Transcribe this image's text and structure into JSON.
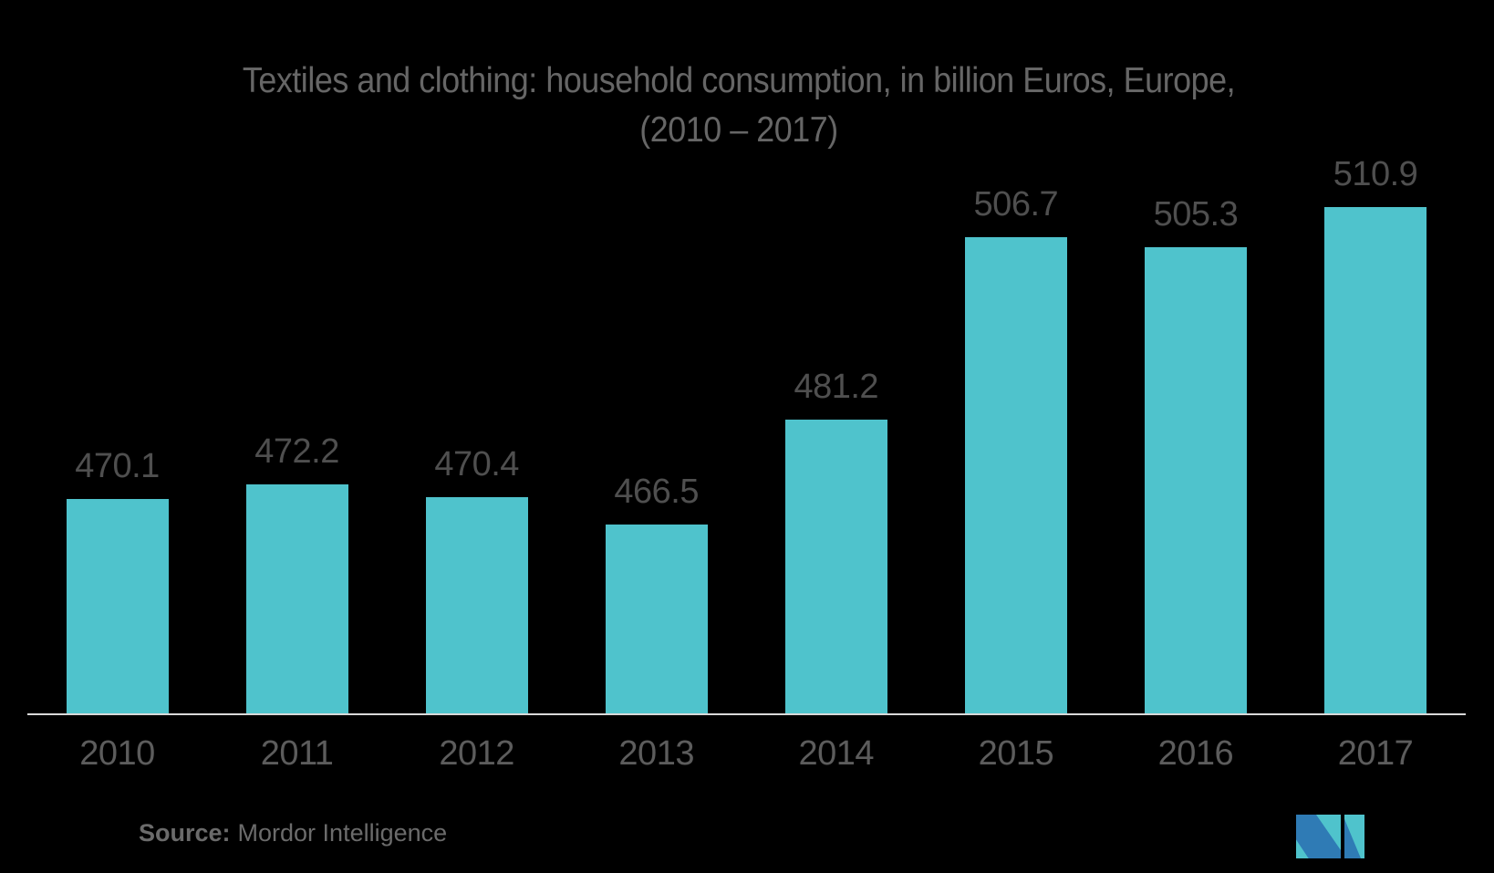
{
  "chart": {
    "title_line1": "Textiles and clothing: household consumption, in billion Euros, Europe,",
    "title_line2": "(2010 – 2017)"
  },
  "chart_data": {
    "type": "bar",
    "categories": [
      "2010",
      "2011",
      "2012",
      "2013",
      "2014",
      "2015",
      "2016",
      "2017"
    ],
    "values": [
      470.1,
      472.2,
      470.4,
      466.5,
      481.2,
      506.7,
      505.3,
      510.9
    ],
    "title": "Textiles and clothing: household consumption, in billion Euros, Europe, (2010 – 2017)",
    "xlabel": "",
    "ylabel": "",
    "ylim": [
      440,
      515
    ],
    "grid": false,
    "legend": "none",
    "value_labels": true
  },
  "source": {
    "label": "Source:",
    "text": "Mordor Intelligence"
  },
  "colors": {
    "background": "#000000",
    "bar": "#4FC3CC",
    "title_text": "#666666",
    "value_label_text": "#4f4f4f",
    "year_label_text": "#5c5c5c",
    "axis_line": "#d9d9d9",
    "source_text": "#6b6b6b",
    "logo_blue": "#2F7BB5",
    "logo_teal": "#4FC3CC"
  },
  "logo": {
    "icon": "mordor-intelligence-logo"
  }
}
